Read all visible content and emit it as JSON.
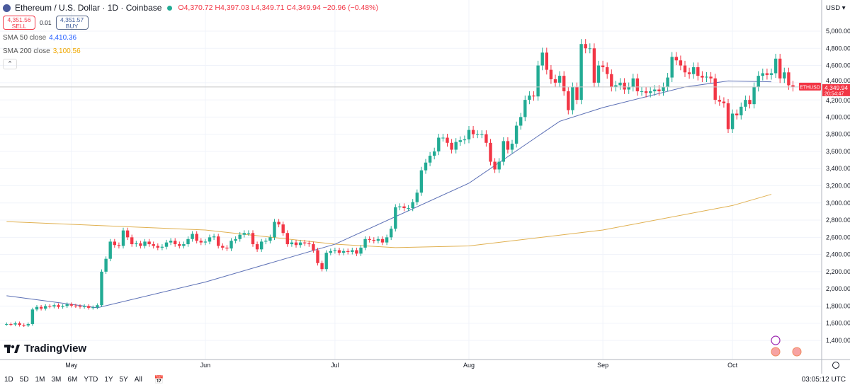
{
  "header": {
    "symbol_title": "Ethereum / U.S. Dollar · 1D · Coinbase",
    "ohlc": "O4,370.72 H4,397.03 L4,349.71 C4,349.94 −20.96 (−0.48%)",
    "sell_price": "4,351.56",
    "sell_label": "SELL",
    "spread": "0.01",
    "buy_price": "4,351.57",
    "buy_label": "BUY",
    "sma50_label": "SMA 50 close",
    "sma50_value": "4,410.36",
    "sma200_label": "SMA 200 close",
    "sma200_value": "3,100.56",
    "collapse_icon": "chevron-up-icon"
  },
  "logo": "TradingView",
  "price_axis": {
    "currency": "USD",
    "ticks": [
      "5,000.00",
      "4,800.00",
      "4,600.00",
      "4,400.00",
      "4,200.00",
      "4,000.00",
      "3,800.00",
      "3,600.00",
      "3,400.00",
      "3,200.00",
      "3,000.00",
      "2,800.00",
      "2,600.00",
      "2,400.00",
      "2,200.00",
      "2,000.00",
      "1,800.00",
      "1,600.00",
      "1,400.00"
    ],
    "last_label": "ETHUSD",
    "last_price": "4,349.94",
    "countdown": "20:54:47"
  },
  "time_axis": {
    "labels": [
      {
        "t": "May",
        "date": "2025-05-01"
      },
      {
        "t": "Jun",
        "date": "2025-06-01"
      },
      {
        "t": "Jul",
        "date": "2025-07-01"
      },
      {
        "t": "Aug",
        "date": "2025-08-01"
      },
      {
        "t": "Sep",
        "date": "2025-09-01"
      },
      {
        "t": "Oct",
        "date": "2025-10-01"
      }
    ]
  },
  "toolbar": {
    "ranges": [
      "1D",
      "5D",
      "1M",
      "3M",
      "6M",
      "YTD",
      "1Y",
      "5Y",
      "All"
    ],
    "calendar_icon": "calendar-icon",
    "clock": "03:05:12 UTC"
  },
  "colors": {
    "up": "#22ab94",
    "down": "#f23645",
    "sma50": "#5b6fb5",
    "sma200": "#e0b050",
    "grid": "#f0f3fa"
  },
  "chart_data": {
    "type": "candlestick",
    "start_date": "2025-04-16",
    "closes": [
      1590,
      1585,
      1600,
      1580,
      1575,
      1590,
      1760,
      1790,
      1770,
      1800,
      1795,
      1810,
      1790,
      1800,
      1820,
      1805,
      1800,
      1790,
      1800,
      1780,
      1785,
      1810,
      2200,
      2350,
      2550,
      2510,
      2500,
      2680,
      2600,
      2520,
      2530,
      2500,
      2550,
      2520,
      2500,
      2480,
      2490,
      2540,
      2560,
      2520,
      2500,
      2520,
      2580,
      2640,
      2560,
      2540,
      2550,
      2600,
      2610,
      2500,
      2480,
      2470,
      2560,
      2580,
      2630,
      2650,
      2650,
      2520,
      2460,
      2550,
      2560,
      2600,
      2780,
      2750,
      2650,
      2520,
      2540,
      2510,
      2540,
      2530,
      2520,
      2450,
      2300,
      2230,
      2420,
      2440,
      2450,
      2420,
      2440,
      2430,
      2450,
      2410,
      2480,
      2580,
      2570,
      2560,
      2580,
      2540,
      2600,
      2700,
      2950,
      2960,
      2940,
      2940,
      3010,
      3120,
      3380,
      3470,
      3550,
      3600,
      3760,
      3760,
      3700,
      3620,
      3710,
      3730,
      3740,
      3850,
      3800,
      3800,
      3800,
      3700,
      3480,
      3390,
      3480,
      3720,
      3620,
      3690,
      3900,
      4000,
      4200,
      4250,
      4240,
      4600,
      4750,
      4550,
      4440,
      4400,
      4480,
      4300,
      4080,
      4350,
      4200,
      4850,
      4800,
      4800,
      4400,
      4600,
      4580,
      4500,
      4350,
      4370,
      4400,
      4320,
      4350,
      4450,
      4300,
      4300,
      4280,
      4300,
      4320,
      4300,
      4350,
      4460,
      4700,
      4660,
      4600,
      4520,
      4500,
      4580,
      4480,
      4460,
      4470,
      4450,
      4200,
      4180,
      4160,
      3860,
      4040,
      4020,
      4120,
      4200,
      4150,
      4350,
      4480,
      4510,
      4490,
      4510,
      4680,
      4450,
      4520,
      4370,
      4349.94
    ],
    "sma50": [
      [
        "2025-04-16",
        1920
      ],
      [
        "2025-05-07",
        1780
      ],
      [
        "2025-06-01",
        2080
      ],
      [
        "2025-07-01",
        2520
      ],
      [
        "2025-08-01",
        3230
      ],
      [
        "2025-08-22",
        3950
      ],
      [
        "2025-09-01",
        4110
      ],
      [
        "2025-09-20",
        4350
      ],
      [
        "2025-09-30",
        4420
      ],
      [
        "2025-10-10",
        4410.36
      ]
    ],
    "sma200": [
      [
        "2025-04-16",
        2783
      ],
      [
        "2025-06-01",
        2685
      ],
      [
        "2025-07-01",
        2520
      ],
      [
        "2025-07-15",
        2480
      ],
      [
        "2025-08-01",
        2500
      ],
      [
        "2025-09-01",
        2685
      ],
      [
        "2025-10-01",
        2970
      ],
      [
        "2025-10-10",
        3100.56
      ]
    ],
    "ylim": [
      1400,
      5000
    ],
    "scale": "linear",
    "grid": true
  }
}
